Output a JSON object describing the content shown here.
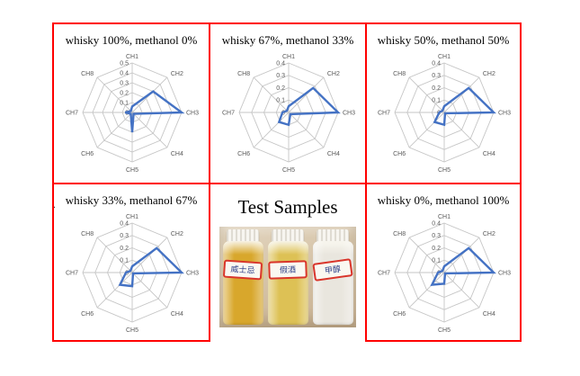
{
  "colors": {
    "panel_border_red": "#ff0000",
    "radar_line_blue": "#4472c4",
    "grid_gray": "#c6c6c6",
    "axis_label_gray": "#595959"
  },
  "chart_data": [
    {
      "type": "radar",
      "title": "whisky 100%, methanol 0%",
      "categories": [
        "CH1",
        "CH2",
        "CH3",
        "CH4",
        "CH5",
        "CH6",
        "CH7",
        "CH8"
      ],
      "values": [
        0.06,
        0.3,
        0.5,
        0.02,
        0.2,
        0.02,
        0.07,
        0.02
      ],
      "axis_max": 0.5,
      "tick_labels": [
        "0.5",
        "0.4",
        "0.3",
        "0.2",
        "0.1",
        "0"
      ],
      "grid": true,
      "legend": false
    },
    {
      "type": "radar",
      "title": "whisky 67%, methanol 33%",
      "categories": [
        "CH1",
        "CH2",
        "CH3",
        "CH4",
        "CH5",
        "CH6",
        "CH7",
        "CH8"
      ],
      "values": [
        0.05,
        0.28,
        0.4,
        0.02,
        0.1,
        0.11,
        0.05,
        0.02
      ],
      "axis_max": 0.4,
      "tick_labels": [
        "0.4",
        "0.3",
        "0.2",
        "0.1",
        "0"
      ],
      "grid": true,
      "legend": false
    },
    {
      "type": "radar",
      "title": "whisky 50%, methanol 50%",
      "categories": [
        "CH1",
        "CH2",
        "CH3",
        "CH4",
        "CH5",
        "CH6",
        "CH7",
        "CH8"
      ],
      "values": [
        0.05,
        0.28,
        0.4,
        0.01,
        0.1,
        0.11,
        0.04,
        0.02
      ],
      "axis_max": 0.4,
      "tick_labels": [
        "0.4",
        "0.3",
        "0.2",
        "0.1",
        "0"
      ],
      "grid": true,
      "legend": false
    },
    {
      "type": "radar",
      "title": "whisky 33%, methanol 67%",
      "categories": [
        "CH1",
        "CH2",
        "CH3",
        "CH4",
        "CH5",
        "CH6",
        "CH7",
        "CH8"
      ],
      "values": [
        0.05,
        0.28,
        0.4,
        0.01,
        0.11,
        0.14,
        0.05,
        0.02
      ],
      "axis_max": 0.4,
      "tick_labels": [
        "0.4",
        "0.3",
        "0.2",
        "0.1",
        "0"
      ],
      "grid": true,
      "legend": false
    },
    {
      "type": "radar",
      "title": "whisky 0%, methanol 100%",
      "categories": [
        "CH1",
        "CH2",
        "CH3",
        "CH4",
        "CH5",
        "CH6",
        "CH7",
        "CH8"
      ],
      "values": [
        0.05,
        0.28,
        0.4,
        0.01,
        0.09,
        0.14,
        0.05,
        0.02
      ],
      "axis_max": 0.4,
      "tick_labels": [
        "0.4",
        "0.3",
        "0.2",
        "0.1",
        "0"
      ],
      "grid": true,
      "legend": false
    }
  ],
  "photo_panel": {
    "title": "Test Samples",
    "samples": [
      {
        "label": "威士忌",
        "liquid_color": "#d8a72c"
      },
      {
        "label": "假酒",
        "liquid_color": "#ddc155"
      },
      {
        "label": "甲醇",
        "liquid_color": "#e9e6de"
      }
    ]
  },
  "artifact_dot": "."
}
